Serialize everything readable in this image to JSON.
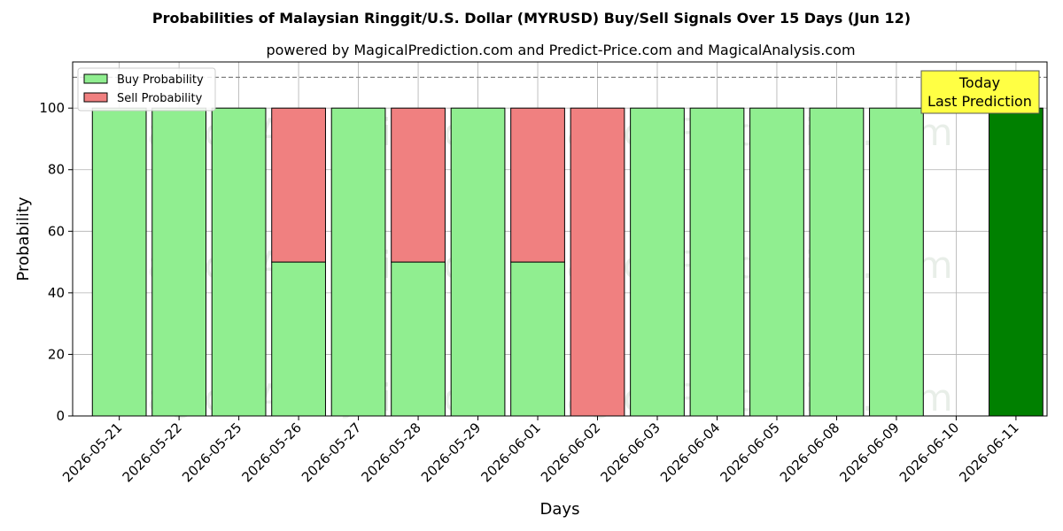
{
  "chart_data": {
    "type": "bar",
    "stacked": true,
    "title": "Probabilities of Malaysian Ringgit/U.S. Dollar (MYRUSD) Buy/Sell Signals Over 15 Days (Jun 12)",
    "subtitle": "powered by MagicalPrediction.com and Predict-Price.com and MagicalAnalysis.com",
    "xlabel": "Days",
    "ylabel": "Probability",
    "ylim": [
      0,
      115
    ],
    "yticks": [
      0,
      20,
      40,
      60,
      80,
      100
    ],
    "grid": true,
    "legend_placement": "top-left",
    "categories": [
      "2026-05-21",
      "2026-05-22",
      "2026-05-25",
      "2026-05-26",
      "2026-05-27",
      "2026-05-28",
      "2026-05-29",
      "2026-06-01",
      "2026-06-02",
      "2026-06-03",
      "2026-06-04",
      "2026-06-05",
      "2026-06-08",
      "2026-06-09",
      "2026-06-10",
      "2026-06-11"
    ],
    "series": [
      {
        "name": "Buy Probability",
        "color": "#90ee90",
        "values": [
          100,
          100,
          100,
          50,
          100,
          50,
          100,
          50,
          0,
          100,
          100,
          100,
          100,
          100,
          null,
          100
        ]
      },
      {
        "name": "Sell Probability",
        "color": "#f08080",
        "values": [
          0,
          0,
          0,
          50,
          0,
          50,
          0,
          50,
          100,
          0,
          0,
          0,
          0,
          0,
          null,
          0
        ]
      }
    ],
    "highlight": {
      "category": "2026-06-11",
      "color": "#008000"
    },
    "reference_line": {
      "y": 110,
      "style": "dashed",
      "color": "#808080"
    },
    "annotation": {
      "lines": [
        "Today",
        "Last Prediction"
      ],
      "background": "#ffff44"
    },
    "watermarks": [
      "MagicalAnalysis.com",
      "MagicalPrediction.com"
    ]
  }
}
